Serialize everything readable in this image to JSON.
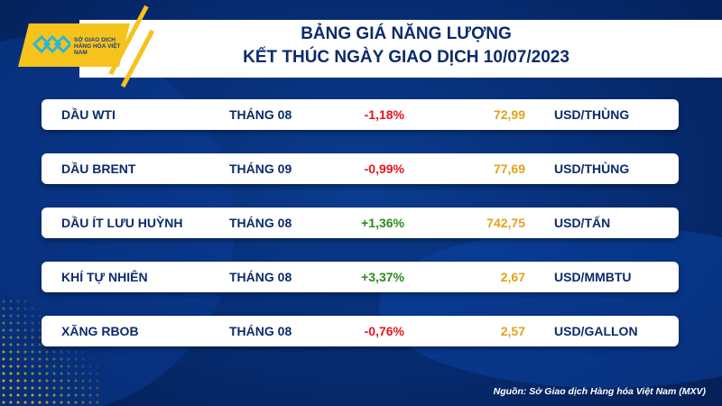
{
  "header": {
    "title_line1": "BẢNG GIÁ NĂNG LƯỢNG",
    "title_line2": "KẾT THÚC NGÀY GIAO DỊCH 10/07/2023",
    "logo_text": "SỞ GIAO DỊCH HÀNG HÓA VIỆT NAM"
  },
  "rows": [
    {
      "name": "DẦU WTI",
      "month": "THÁNG 08",
      "change": "-1,18%",
      "price": "72,99",
      "unit": "USD/THÙNG",
      "dir": "neg"
    },
    {
      "name": "DẦU BRENT",
      "month": "THÁNG 09",
      "change": "-0,99%",
      "price": "77,69",
      "unit": "USD/THÙNG",
      "dir": "neg"
    },
    {
      "name": "DẦU ÍT LƯU HUỲNH",
      "month": "THÁNG 08",
      "change": "+1,36%",
      "price": "742,75",
      "unit": "USD/TẤN",
      "dir": "pos"
    },
    {
      "name": "KHÍ TỰ NHIÊN",
      "month": "THÁNG 08",
      "change": "+3,37%",
      "price": "2,67",
      "unit": "USD/MMBTU",
      "dir": "pos"
    },
    {
      "name": "XĂNG RBOB",
      "month": "THÁNG 08",
      "change": "-0,76%",
      "price": "2,57",
      "unit": "USD/GALLON",
      "dir": "neg"
    }
  ],
  "colors": {
    "negative": "#e8141b",
    "positive": "#2b8a1e",
    "price": "#e0a21a",
    "navy": "#0c2b6b",
    "accent": "#f6c21c"
  },
  "footer": {
    "source": "Nguồn: Sở Giao dịch Hàng hóa Việt Nam (MXV)"
  }
}
